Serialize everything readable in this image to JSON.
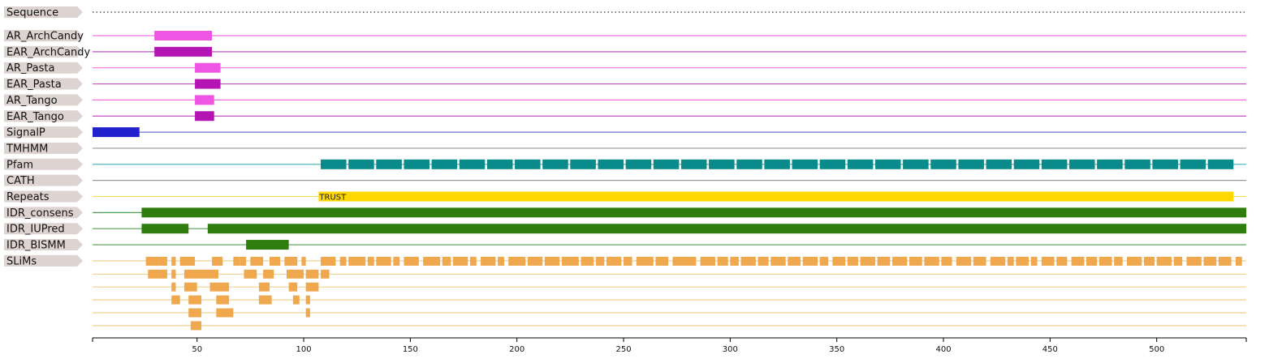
{
  "axis": {
    "min": 1,
    "max": 542,
    "ticks": [
      50,
      100,
      150,
      200,
      250,
      300,
      350,
      400,
      450,
      500
    ]
  },
  "tracks": [
    {
      "label": "Sequence",
      "line": "#555555",
      "style": "dotted",
      "features": []
    },
    {
      "label": "AR_ArchCandy",
      "line": "#f070e0",
      "features": [
        {
          "start": 30,
          "end": 57,
          "color": "#ee55e2"
        }
      ]
    },
    {
      "label": "EAR_ArchCandy",
      "line": "#c050c0",
      "features": [
        {
          "start": 30,
          "end": 57,
          "color": "#b414b4"
        }
      ]
    },
    {
      "label": "AR_Pasta",
      "line": "#f070e0",
      "features": [
        {
          "start": 49,
          "end": 61,
          "color": "#ee55e2"
        }
      ]
    },
    {
      "label": "EAR_Pasta",
      "line": "#c050c0",
      "features": [
        {
          "start": 49,
          "end": 61,
          "color": "#b414b4"
        }
      ]
    },
    {
      "label": "AR_Tango",
      "line": "#f070e0",
      "features": [
        {
          "start": 49,
          "end": 58,
          "color": "#ee55e2"
        }
      ]
    },
    {
      "label": "EAR_Tango",
      "line": "#c050c0",
      "features": [
        {
          "start": 49,
          "end": 58,
          "color": "#b414b4"
        }
      ]
    },
    {
      "label": "SignalP",
      "line": "#7070d0",
      "features": [
        {
          "start": 1,
          "end": 23,
          "color": "#2222cc"
        }
      ]
    },
    {
      "label": "TMHMM",
      "line": "#999999",
      "features": []
    },
    {
      "label": "Pfam",
      "line": "#40b0b0",
      "features": [
        {
          "start": 108,
          "end": 120,
          "color": "#0a8a8a"
        },
        {
          "start": 121,
          "end": 133,
          "color": "#0a8a8a"
        },
        {
          "start": 134,
          "end": 146,
          "color": "#0a8a8a"
        },
        {
          "start": 147,
          "end": 159,
          "color": "#0a8a8a"
        },
        {
          "start": 160,
          "end": 172,
          "color": "#0a8a8a"
        },
        {
          "start": 173,
          "end": 185,
          "color": "#0a8a8a"
        },
        {
          "start": 186,
          "end": 198,
          "color": "#0a8a8a"
        },
        {
          "start": 199,
          "end": 211,
          "color": "#0a8a8a"
        },
        {
          "start": 212,
          "end": 224,
          "color": "#0a8a8a"
        },
        {
          "start": 225,
          "end": 237,
          "color": "#0a8a8a"
        },
        {
          "start": 238,
          "end": 250,
          "color": "#0a8a8a"
        },
        {
          "start": 251,
          "end": 263,
          "color": "#0a8a8a"
        },
        {
          "start": 264,
          "end": 276,
          "color": "#0a8a8a"
        },
        {
          "start": 277,
          "end": 289,
          "color": "#0a8a8a"
        },
        {
          "start": 290,
          "end": 302,
          "color": "#0a8a8a"
        },
        {
          "start": 303,
          "end": 315,
          "color": "#0a8a8a"
        },
        {
          "start": 316,
          "end": 328,
          "color": "#0a8a8a"
        },
        {
          "start": 329,
          "end": 341,
          "color": "#0a8a8a"
        },
        {
          "start": 342,
          "end": 354,
          "color": "#0a8a8a"
        },
        {
          "start": 355,
          "end": 367,
          "color": "#0a8a8a"
        },
        {
          "start": 368,
          "end": 380,
          "color": "#0a8a8a"
        },
        {
          "start": 381,
          "end": 393,
          "color": "#0a8a8a"
        },
        {
          "start": 394,
          "end": 406,
          "color": "#0a8a8a"
        },
        {
          "start": 407,
          "end": 419,
          "color": "#0a8a8a"
        },
        {
          "start": 420,
          "end": 432,
          "color": "#0a8a8a"
        },
        {
          "start": 433,
          "end": 445,
          "color": "#0a8a8a"
        },
        {
          "start": 446,
          "end": 458,
          "color": "#0a8a8a"
        },
        {
          "start": 459,
          "end": 471,
          "color": "#0a8a8a"
        },
        {
          "start": 472,
          "end": 484,
          "color": "#0a8a8a"
        },
        {
          "start": 485,
          "end": 497,
          "color": "#0a8a8a"
        },
        {
          "start": 498,
          "end": 510,
          "color": "#0a8a8a"
        },
        {
          "start": 511,
          "end": 523,
          "color": "#0a8a8a"
        },
        {
          "start": 524,
          "end": 536,
          "color": "#0a8a8a"
        }
      ]
    },
    {
      "label": "CATH",
      "line": "#999999",
      "features": []
    },
    {
      "label": "Repeats",
      "line": "#f0e060",
      "features": [
        {
          "start": 107,
          "end": 536,
          "color": "#ffd700",
          "text": "TRUST"
        }
      ]
    },
    {
      "label": "IDR_consens",
      "line": "#50a050",
      "features": [
        {
          "start": 24,
          "end": 542,
          "color": "#2e7d0e"
        }
      ]
    },
    {
      "label": "IDR_IUPred",
      "line": "#50a050",
      "features": [
        {
          "start": 24,
          "end": 46,
          "color": "#2e7d0e"
        },
        {
          "start": 55,
          "end": 542,
          "color": "#2e7d0e"
        }
      ]
    },
    {
      "label": "IDR_BISMM",
      "line": "#50a050",
      "features": [
        {
          "start": 73,
          "end": 93,
          "color": "#2e7d0e"
        }
      ]
    },
    {
      "label": "SLiMs",
      "line": "#f0d090",
      "features": []
    }
  ],
  "slims": {
    "color": "#efa84e",
    "line": "#f0d090",
    "rows": [
      [
        [
          26,
          32
        ],
        [
          32,
          36
        ],
        [
          38,
          40
        ],
        [
          42,
          49
        ],
        [
          57,
          62
        ],
        [
          67,
          70
        ],
        [
          70,
          73
        ],
        [
          75,
          81
        ],
        [
          84,
          89
        ],
        [
          91,
          97
        ],
        [
          99,
          101
        ],
        [
          108,
          115
        ],
        [
          117,
          120
        ],
        [
          121,
          129
        ],
        [
          130,
          133
        ],
        [
          134,
          141
        ],
        [
          142,
          145
        ],
        [
          147,
          154
        ],
        [
          156,
          164
        ],
        [
          165,
          169
        ],
        [
          170,
          177
        ],
        [
          178,
          181
        ],
        [
          183,
          190
        ],
        [
          191,
          194
        ],
        [
          196,
          204
        ],
        [
          205,
          212
        ],
        [
          213,
          220
        ],
        [
          221,
          229
        ],
        [
          230,
          236
        ],
        [
          237,
          241
        ],
        [
          242,
          249
        ],
        [
          250,
          254
        ],
        [
          256,
          264
        ],
        [
          265,
          271
        ],
        [
          273,
          281
        ],
        [
          281,
          284
        ],
        [
          286,
          293
        ],
        [
          294,
          299
        ],
        [
          300,
          304
        ],
        [
          305,
          312
        ],
        [
          313,
          318
        ],
        [
          319,
          326
        ],
        [
          327,
          333
        ],
        [
          334,
          341
        ],
        [
          342,
          346
        ],
        [
          348,
          354
        ],
        [
          355,
          360
        ],
        [
          361,
          368
        ],
        [
          369,
          375
        ],
        [
          376,
          383
        ],
        [
          384,
          390
        ],
        [
          391,
          398
        ],
        [
          399,
          404
        ],
        [
          406,
          413
        ],
        [
          414,
          420
        ],
        [
          422,
          429
        ],
        [
          430,
          433
        ],
        [
          434,
          440
        ],
        [
          441,
          444
        ],
        [
          446,
          452
        ],
        [
          453,
          458
        ],
        [
          460,
          466
        ],
        [
          467,
          472
        ],
        [
          473,
          479
        ],
        [
          480,
          484
        ],
        [
          486,
          493
        ],
        [
          494,
          499
        ],
        [
          500,
          507
        ],
        [
          508,
          512
        ],
        [
          514,
          521
        ],
        [
          522,
          528
        ],
        [
          529,
          535
        ],
        [
          537,
          540
        ]
      ],
      [
        [
          27,
          36
        ],
        [
          38,
          40
        ],
        [
          44,
          60
        ],
        [
          72,
          78
        ],
        [
          81,
          86
        ],
        [
          92,
          100
        ],
        [
          101,
          107
        ],
        [
          108,
          112
        ]
      ],
      [
        [
          38,
          40
        ],
        [
          44,
          50
        ],
        [
          56,
          65
        ],
        [
          79,
          84
        ],
        [
          93,
          97
        ],
        [
          101,
          107
        ]
      ],
      [
        [
          38,
          42
        ],
        [
          46,
          52
        ],
        [
          59,
          65
        ],
        [
          79,
          85
        ],
        [
          95,
          98
        ],
        [
          101,
          103
        ]
      ],
      [
        [
          46,
          52
        ],
        [
          59,
          67
        ],
        [
          101,
          103
        ]
      ],
      [
        [
          47,
          52
        ]
      ]
    ]
  }
}
